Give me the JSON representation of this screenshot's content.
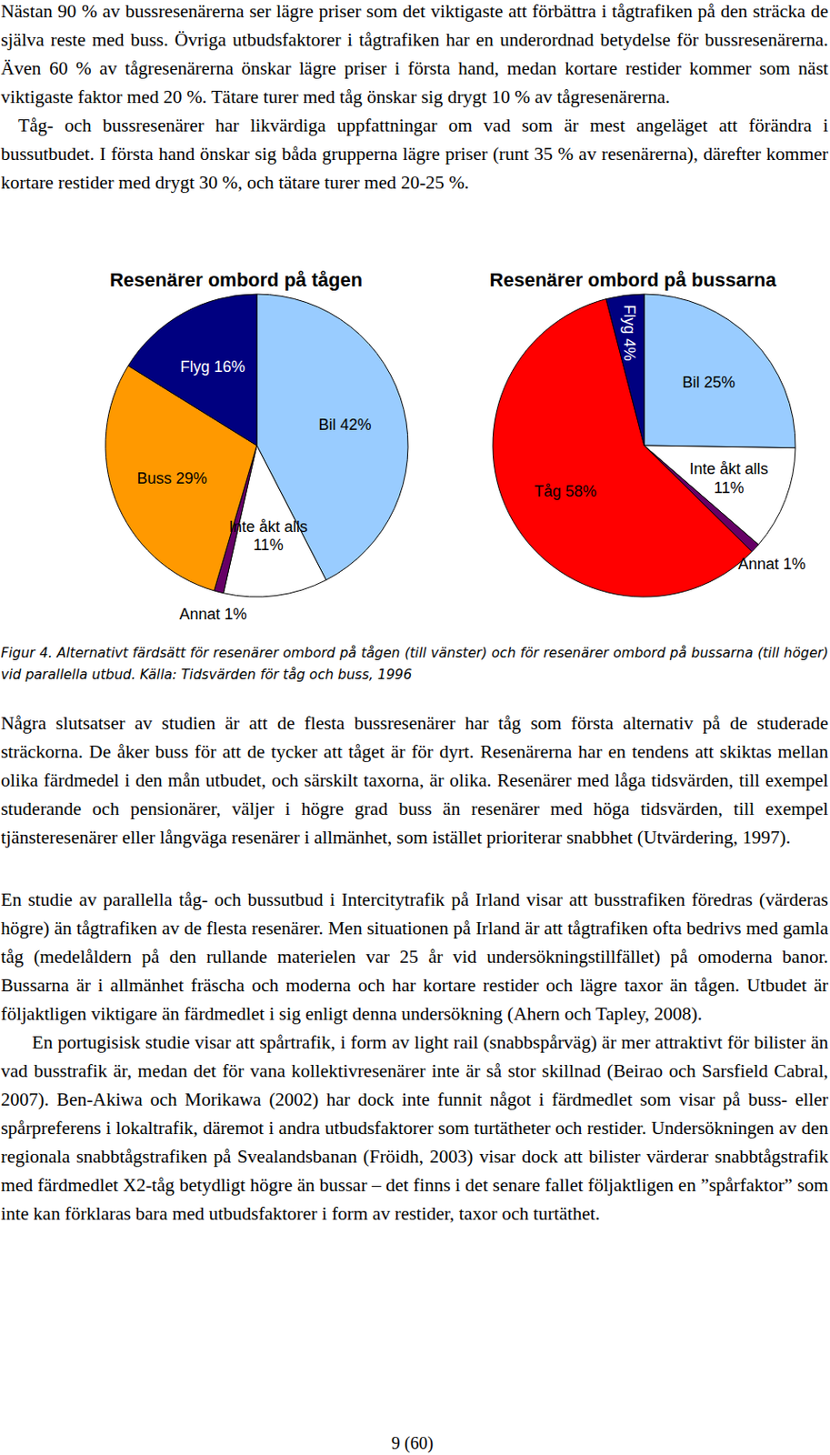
{
  "paragraphs_top": [
    "Nästan 90 % av bussresenärerna ser lägre priser som det viktigaste att förbättra i tågtrafiken på den sträcka de själva reste med buss. Övriga utbudsfaktorer i tågtrafiken har en underordnad betydelse för bussresenärerna. Även 60 % av tågresenärerna önskar lägre priser i första hand, medan kortare restider kommer som näst viktigaste faktor med 20 %. Tätare turer med tåg önskar sig drygt 10 % av tågresenärerna.",
    "Tåg- och bussresenärer har likvärdiga uppfattningar om vad som är mest angeläget att förändra i bussutbudet. I första hand önskar sig båda grupperna lägre priser (runt 35 % av resenärerna), därefter kommer kortare restider med drygt 30 %, och tätare turer med 20-25 %."
  ],
  "chart_data": [
    {
      "type": "pie",
      "title": "Resenärer ombord på tågen",
      "categories": [
        "Bil",
        "Inte åkt alls",
        "Annat",
        "Buss",
        "Flyg"
      ],
      "values": [
        42,
        11,
        1,
        29,
        16
      ],
      "value_labels": [
        "42%",
        "11%",
        "1%",
        "29%",
        "16%"
      ],
      "colors": [
        "#99ccff",
        "#ffffff",
        "#660066",
        "#ff9900",
        "#000080"
      ],
      "data_labels": true
    },
    {
      "type": "pie",
      "title": "Resenärer ombord på bussarna",
      "categories": [
        "Bil",
        "Inte åkt alls",
        "Annat",
        "Tåg",
        "Flyg"
      ],
      "values": [
        25,
        11,
        1,
        58,
        4
      ],
      "value_labels": [
        "25%",
        "11%",
        "1%",
        "58%",
        "4%"
      ],
      "colors": [
        "#99ccff",
        "#ffffff",
        "#660066",
        "#ff0000",
        "#000080"
      ],
      "data_labels": true
    }
  ],
  "caption": "Figur 4. Alternativt färdsätt för resenärer ombord på tågen (till vänster) och för resenärer ombord på bussarna (till höger) vid parallella utbud. Källa: Tidsvärden för tåg och buss, 1996",
  "paragraphs_bottom": [
    "Några slutsatser av studien är att de flesta bussresenärer har tåg som första alternativ på de studerade sträckorna. De åker buss för att de tycker att tåget är för dyrt. Resenärerna har en tendens att skiktas mellan olika färdmedel i den mån utbudet, och särskilt taxorna, är olika. Resenärer med låga tidsvärden, till exempel studerande och pensionärer, väljer i högre grad buss än resenärer med höga tidsvärden, till exempel tjänsteresenärer eller långväga resenärer i allmänhet, som istället prioriterar snabbhet (Utvärdering, 1997).",
    "En studie av parallella tåg- och bussutbud i Intercitytrafik på Irland visar att busstrafiken föredras (värderas högre) än tågtrafiken av de flesta resenärer. Men situationen på Irland är att tågtrafiken ofta bedrivs med gamla tåg (medelåldern på den rullande materielen var 25 år vid undersökningstillfället) på omoderna banor. Bussarna är i allmänhet fräscha och moderna och har kortare restider och lägre taxor än tågen. Utbudet är följaktligen viktigare än färdmedlet i sig enligt denna undersökning (Ahern och Tapley, 2008).",
    "En portugisisk studie visar att spårtrafik, i form av light rail (snabbspårväg) är mer attraktivt för bilister än vad busstrafik är, medan det för vana kollektivresenärer inte är så stor skillnad (Beirao och Sarsfield Cabral, 2007). Ben-Akiwa och Morikawa (2002) har dock inte funnit något i färdmedlet som visar på buss- eller spårpreferens i lokaltrafik, däremot i andra utbudsfaktorer som turtätheter och restider. Undersökningen av den regionala snabbtågstrafiken på Svealandsbanan (Fröidh, 2003) visar dock att bilister värderar snabbtågstrafik med färdmedlet X2-tåg betydligt högre än bussar – det finns i det senare fallet följaktligen en ”spårfaktor” som inte kan förklaras bara med utbudsfaktorer i form av restider, taxor och turtäthet."
  ],
  "page_number": "9 (60)"
}
